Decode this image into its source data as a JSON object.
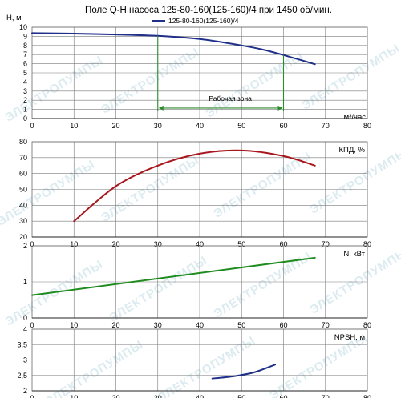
{
  "chart_data": {
    "type": "line",
    "title": "Поле Q-H насоса 125-80-160(125-160)/4 при 1450 об/мин.",
    "xlabel": "м³/час",
    "xlim": [
      0,
      80
    ],
    "x_ticks": [
      "0",
      "10",
      "20",
      "30",
      "40",
      "50",
      "60",
      "70",
      "80"
    ],
    "watermark": "ЭЛЕКТРОПУМПЫ",
    "panels": [
      {
        "id": "head",
        "ylabel": "H, м",
        "ylim": [
          0,
          10
        ],
        "y_ticks": [
          "0",
          "1",
          "2",
          "3",
          "4",
          "5",
          "6",
          "7",
          "8",
          "9",
          "10"
        ],
        "legend": "125-80-160(125-160)/4",
        "series": [
          {
            "name": "125-80-160(125-160)/4",
            "color": "#1f2f8a",
            "x": [
              0,
              10,
              20,
              30,
              40,
              50,
              55,
              60,
              67.5
            ],
            "y": [
              9.35,
              9.3,
              9.2,
              9.05,
              8.7,
              8.0,
              7.55,
              6.95,
              5.95
            ]
          }
        ],
        "work_zone": {
          "label": "Рабочая зона",
          "x": [
            30,
            60
          ],
          "arrow_y": 1.15,
          "color": "#2e8b2e"
        }
      },
      {
        "id": "efficiency",
        "label": "КПД, %",
        "ylim": [
          20,
          80
        ],
        "y_ticks": [
          "20",
          "30",
          "40",
          "50",
          "60",
          "70",
          "80"
        ],
        "series": [
          {
            "name": "КПД, %",
            "color": "#a8171d",
            "x": [
              10,
              20,
              30,
              40,
              50,
              60,
              67.5
            ],
            "y": [
              30,
              52,
              65,
              72.5,
              74.5,
              71,
              65
            ]
          }
        ]
      },
      {
        "id": "power",
        "label": "N, кВт",
        "ylim": [
          0,
          2
        ],
        "y_ticks": [
          "0",
          "1",
          "2"
        ],
        "series": [
          {
            "name": "N, кВт",
            "color": "#1e8c1e",
            "x": [
              0,
              67.5
            ],
            "y": [
              0.63,
              1.67
            ]
          }
        ]
      },
      {
        "id": "npsh",
        "label": "NPSH, м",
        "ylim": [
          2,
          4
        ],
        "y_ticks": [
          "2",
          "2,5",
          "3",
          "3,5",
          "4"
        ],
        "series": [
          {
            "name": "NPSH, м",
            "color": "#1f2f8a",
            "x": [
              43,
              48,
              53,
              58
            ],
            "y": [
              2.4,
              2.47,
              2.6,
              2.85
            ]
          }
        ]
      }
    ]
  }
}
